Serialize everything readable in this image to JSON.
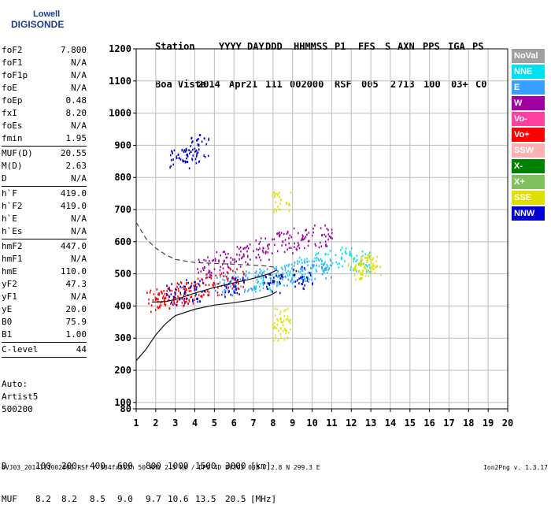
{
  "logo": {
    "line1": "Lowell",
    "line2": "DIGISONDE"
  },
  "header": {
    "labels": [
      "Station",
      "YYYY",
      "DAY",
      "DDD",
      "HHMMSS",
      "P1",
      "FFS",
      "S",
      "AXN",
      "PPS",
      "IGA",
      "PS"
    ],
    "values": [
      "Boa Vista",
      "2014",
      "Apr21",
      "111",
      "002000",
      "RSF",
      "005",
      "2",
      "713",
      "100",
      "03+",
      "C0"
    ]
  },
  "params": [
    {
      "name": "foF2",
      "value": "7.800"
    },
    {
      "name": "foF1",
      "value": "N/A"
    },
    {
      "name": "foF1p",
      "value": "N/A"
    },
    {
      "name": "foE",
      "value": "N/A"
    },
    {
      "name": "foEp",
      "value": "0.48"
    },
    {
      "name": "fxI",
      "value": "8.20"
    },
    {
      "name": "foEs",
      "value": "N/A"
    },
    {
      "name": "fmin",
      "value": "1.95"
    },
    {
      "sep": true
    },
    {
      "name": "MUF(D)",
      "value": "20.55"
    },
    {
      "name": "M(D)",
      "value": "2.63"
    },
    {
      "name": "D",
      "value": "N/A"
    },
    {
      "sep": true
    },
    {
      "name": "h`F",
      "value": "419.0"
    },
    {
      "name": "h`F2",
      "value": "419.0"
    },
    {
      "name": "h`E",
      "value": "N/A"
    },
    {
      "name": "h`Es",
      "value": "N/A"
    },
    {
      "sep": true
    },
    {
      "name": "hmF2",
      "value": "447.0"
    },
    {
      "name": "hmF1",
      "value": "N/A"
    },
    {
      "name": "hmE",
      "value": "110.0"
    },
    {
      "name": "yF2",
      "value": "47.3"
    },
    {
      "name": "yF1",
      "value": "N/A"
    },
    {
      "name": "yE",
      "value": "20.0"
    },
    {
      "name": "B0",
      "value": "75.9"
    },
    {
      "name": "B1",
      "value": "1.00"
    },
    {
      "sep": true
    },
    {
      "name": "C-level",
      "value": "44"
    },
    {
      "sep": true
    }
  ],
  "auto": {
    "line1": "Auto:",
    "line2": "Artist5",
    "line3": "500200"
  },
  "dmuf": {
    "d_label": "D",
    "d_values": [
      "100",
      "200",
      "400",
      "600",
      "800",
      "1000",
      "1500",
      "3000"
    ],
    "d_unit": "[km]",
    "muf_label": "MUF",
    "muf_values": [
      "8.2",
      "8.2",
      "8.5",
      "9.0",
      "9.7",
      "10.6",
      "13.5",
      "20.5"
    ],
    "muf_unit": "[MHz]"
  },
  "footer": "BVJ03_2014111002000.RSF / 384fx512h 50 kHz 2.5 km / DPS-4D BVJ03 003 / 2.8 N 299.3 E",
  "version": "Ion2Png v. 1.3.17",
  "legend": [
    {
      "label": "NoVal",
      "color": "#a0a0a0"
    },
    {
      "label": "NNE",
      "color": "#00e0f0"
    },
    {
      "label": "E",
      "color": "#3aa0ff"
    },
    {
      "label": "W",
      "color": "#a000a0"
    },
    {
      "label": "Vo-",
      "color": "#ff40a0"
    },
    {
      "label": "Vo+",
      "color": "#ff0000"
    },
    {
      "label": "SSW",
      "color": "#ffb0b0"
    },
    {
      "label": "X-",
      "color": "#008000"
    },
    {
      "label": "X+",
      "color": "#80c060"
    },
    {
      "label": "SSE",
      "color": "#e0e000"
    },
    {
      "label": "NNW",
      "color": "#0000d0"
    }
  ],
  "chart_data": {
    "type": "scatter",
    "title": "",
    "xlabel": "",
    "ylabel": "",
    "xlim": [
      1,
      20
    ],
    "ylim": [
      80,
      1200
    ],
    "x_ticks": [
      1,
      2,
      3,
      4,
      5,
      6,
      7,
      8,
      9,
      10,
      11,
      12,
      13,
      14,
      15,
      16,
      17,
      18,
      19,
      20
    ],
    "y_ticks": [
      80,
      100,
      200,
      300,
      400,
      500,
      600,
      700,
      800,
      900,
      1000,
      1100,
      1200
    ],
    "grid": true,
    "legend_position": "right",
    "series": [
      {
        "name": "W",
        "color": "#a000a0",
        "points": [
          [
            4.5,
            520
          ],
          [
            5.5,
            540
          ],
          [
            6.5,
            560
          ],
          [
            7.5,
            580
          ],
          [
            8.5,
            600
          ],
          [
            9.5,
            610
          ],
          [
            10.5,
            620
          ]
        ]
      },
      {
        "name": "NNE",
        "color": "#00e0f0",
        "points": [
          [
            7.5,
            480
          ],
          [
            8.5,
            500
          ],
          [
            9.5,
            520
          ],
          [
            10.5,
            540
          ],
          [
            11.5,
            550
          ],
          [
            12.5,
            540
          ]
        ]
      },
      {
        "name": "E",
        "color": "#3aa0ff",
        "points": [
          [
            5.5,
            470
          ],
          [
            6.5,
            480
          ],
          [
            7.5,
            490
          ],
          [
            8.5,
            500
          ],
          [
            9.5,
            510
          ],
          [
            10.5,
            520
          ]
        ]
      },
      {
        "name": "Vo+",
        "color": "#ff0000",
        "points": [
          [
            2,
            420
          ],
          [
            2.5,
            425
          ],
          [
            3,
            435
          ],
          [
            3.5,
            445
          ],
          [
            4,
            455
          ],
          [
            5,
            470
          ],
          [
            6,
            485
          ]
        ]
      },
      {
        "name": "SSE",
        "color": "#e0e000",
        "points": [
          [
            12.2,
            520
          ],
          [
            12.6,
            530
          ],
          [
            13,
            535
          ],
          [
            8.4,
            730
          ],
          [
            8.4,
            360
          ],
          [
            8.4,
            330
          ]
        ]
      },
      {
        "name": "NNW",
        "color": "#0000d0",
        "points": [
          [
            3,
            440
          ],
          [
            4,
            450
          ],
          [
            6,
            460
          ],
          [
            8,
            475
          ],
          [
            9.5,
            490
          ],
          [
            3.2,
            860
          ],
          [
            3.8,
            880
          ],
          [
            4.2,
            900
          ]
        ]
      }
    ],
    "traces": [
      {
        "name": "dashed",
        "style": "dashed",
        "points": [
          [
            1,
            660
          ],
          [
            1.5,
            610
          ],
          [
            2,
            580
          ],
          [
            2.5,
            560
          ],
          [
            3,
            545
          ],
          [
            4,
            535
          ],
          [
            6,
            530
          ],
          [
            7.5,
            525
          ],
          [
            8.2,
            520
          ]
        ]
      },
      {
        "name": "profile",
        "style": "solid",
        "points": [
          [
            1,
            230
          ],
          [
            1.5,
            265
          ],
          [
            2,
            310
          ],
          [
            2.5,
            345
          ],
          [
            3,
            370
          ],
          [
            4,
            390
          ],
          [
            5,
            403
          ],
          [
            6,
            410
          ],
          [
            7,
            420
          ],
          [
            7.8,
            432
          ],
          [
            8.2,
            445
          ]
        ]
      },
      {
        "name": "trace",
        "style": "solid",
        "points": [
          [
            1.8,
            412
          ],
          [
            2.5,
            414
          ],
          [
            3,
            420
          ],
          [
            4,
            440
          ],
          [
            5,
            458
          ],
          [
            6,
            472
          ],
          [
            7,
            486
          ],
          [
            7.8,
            500
          ],
          [
            8.2,
            512
          ]
        ]
      }
    ]
  }
}
